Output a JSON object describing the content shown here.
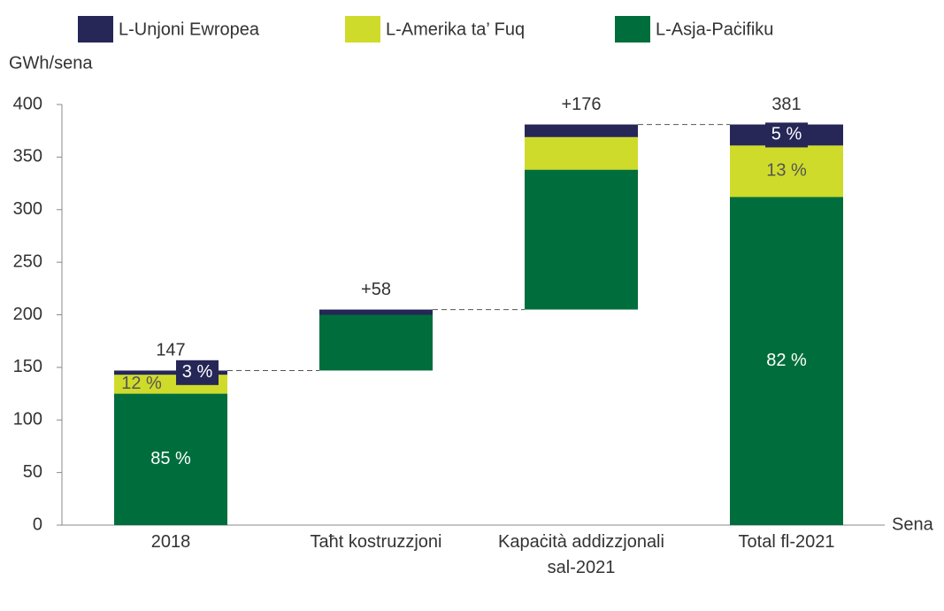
{
  "chart_data": {
    "type": "waterfall",
    "y_label": "GWh/sena",
    "x_label": "Sena",
    "categories": [
      "2018",
      "Taħt kostruzzjoni",
      "Kapaċità addizzjonali sal-2021",
      "Total fl-2021"
    ],
    "measure": [
      "absolute",
      "relative",
      "relative",
      "total"
    ],
    "totals": [
      147,
      58,
      176,
      381
    ],
    "total_labels": [
      "147",
      "+58",
      "+176",
      "381"
    ],
    "series": [
      {
        "name": "L-Unjoni Ewropea",
        "color": "#262757",
        "values": [
          4,
          5,
          12,
          20
        ],
        "share_labels": [
          "3 %",
          null,
          null,
          "5 %"
        ]
      },
      {
        "name": "L-Amerika ta’ Fuq",
        "color": "#cfdb2a",
        "values": [
          18,
          0,
          31,
          49
        ],
        "share_labels": [
          "12 %",
          null,
          null,
          "13 %"
        ]
      },
      {
        "name": "L-Asja-Paċifiku",
        "color": "#006e3c",
        "values": [
          125,
          53,
          133,
          312
        ],
        "share_labels": [
          "85 %",
          null,
          null,
          "82 %"
        ]
      }
    ],
    "ylim": [
      0,
      400
    ],
    "yticks": [
      0,
      50,
      100,
      150,
      200,
      250,
      300,
      350,
      400
    ],
    "grid": false
  }
}
